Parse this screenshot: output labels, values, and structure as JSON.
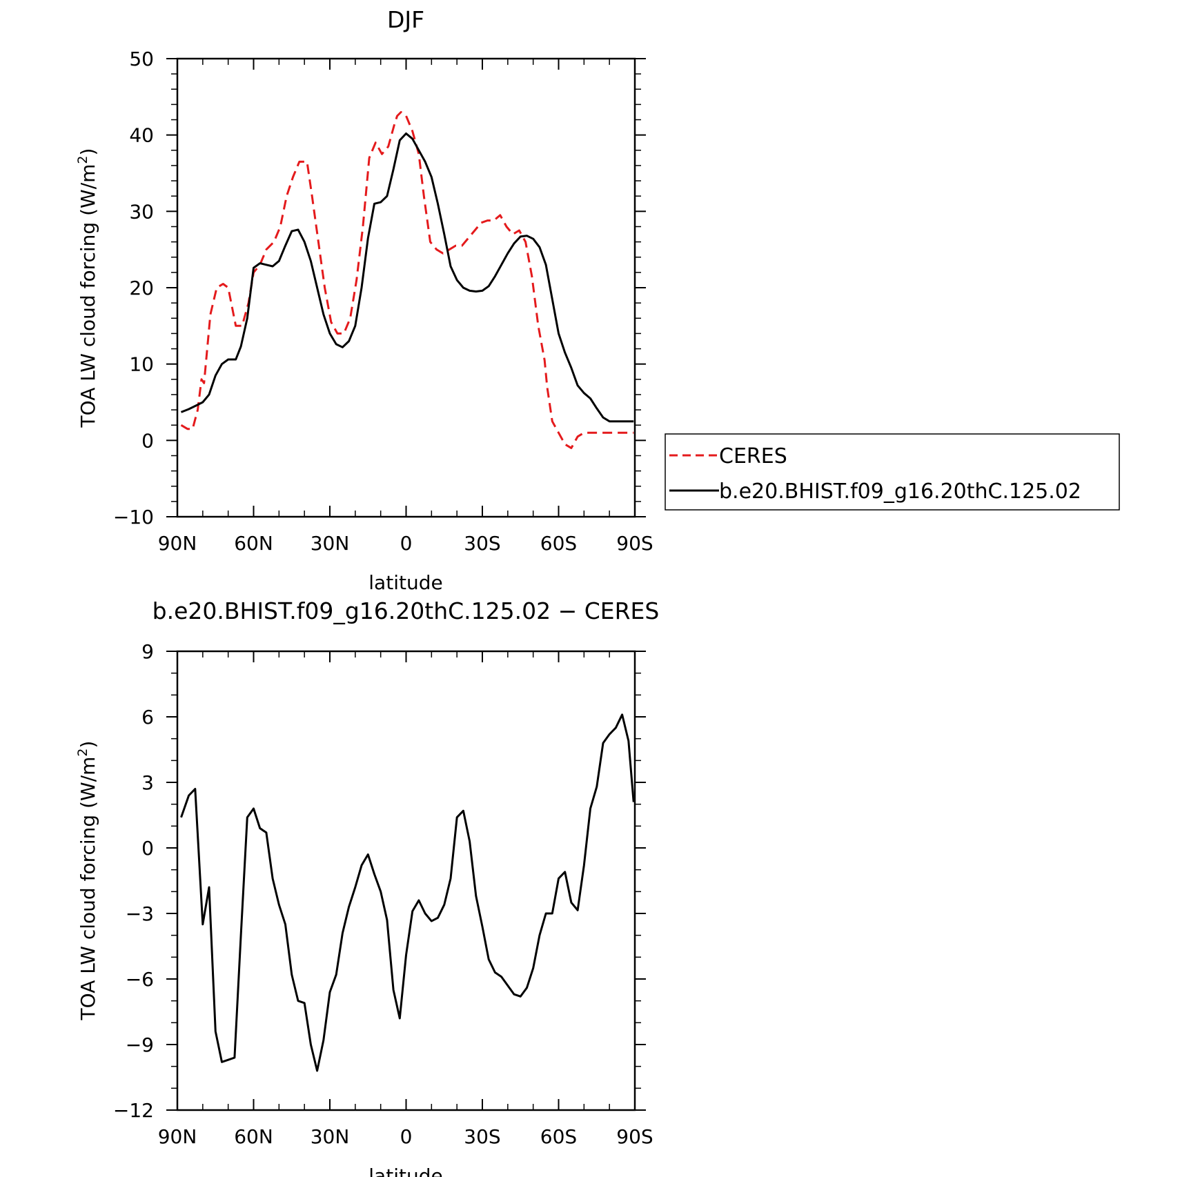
{
  "chart_data": [
    {
      "type": "line",
      "title": "DJF",
      "xlabel": "latitude",
      "ylabel": "TOA LW cloud forcing (W/m",
      "ylabel_sup": "2",
      "ylabel_close": ")",
      "xlim": [
        90,
        -90
      ],
      "ylim": [
        -10,
        50
      ],
      "xticks": [
        90,
        60,
        30,
        0,
        -30,
        -60,
        -90
      ],
      "xtick_labels": [
        "90N",
        "60N",
        "30N",
        "0",
        "30S",
        "60S",
        "90S"
      ],
      "yticks": [
        -10,
        0,
        10,
        20,
        30,
        40,
        50
      ],
      "ytick_labels": [
        "−10",
        "0",
        "10",
        "20",
        "30",
        "40",
        "50"
      ],
      "legend_placement": "right, outside plot",
      "series": [
        {
          "name": "CERES",
          "color": "#e41a1c",
          "dash": true,
          "x": [
            88.5,
            86.0,
            84.0,
            82.0,
            80.5,
            79.5,
            77.0,
            74.5,
            72.0,
            70.0,
            67.0,
            64.5,
            62.0,
            60.0,
            57.5,
            55.0,
            52.0,
            49.5,
            47.0,
            44.5,
            42.0,
            39.0,
            37.0,
            34.5,
            32.0,
            29.5,
            27.0,
            24.5,
            22.0,
            19.5,
            17.0,
            14.5,
            12.0,
            9.5,
            7.0,
            4.5,
            3.5,
            2.0,
            0.0,
            -2.5,
            -5.0,
            -7.0,
            -9.5,
            -12.0,
            -14.5,
            -17.0,
            -19.5,
            -22.0,
            -24.5,
            -27.0,
            -29.5,
            -32.0,
            -34.5,
            -37.0,
            -39.5,
            -42.0,
            -44.5,
            -47.0,
            -49.5,
            -52.0,
            -54.5,
            -55.5,
            -57.5,
            -60.0,
            -62.5,
            -65.0,
            -67.5,
            -70.0,
            -72.5,
            -75.0,
            -77.5,
            -80.0,
            -82.5,
            -85.0,
            -87.5,
            -89.5
          ],
          "y": [
            2.0,
            1.5,
            1.5,
            4.0,
            8.0,
            7.5,
            16.5,
            20.0,
            20.5,
            20.0,
            15.0,
            15.0,
            18.0,
            22.0,
            23.0,
            25.0,
            26.0,
            28.0,
            32.0,
            34.5,
            36.5,
            36.5,
            32.0,
            26.0,
            20.0,
            15.5,
            14.0,
            14.0,
            16.0,
            21.0,
            28.0,
            37.0,
            39.0,
            37.5,
            38.5,
            41.5,
            42.5,
            43.0,
            42.5,
            40.5,
            37.5,
            32.0,
            26.0,
            25.0,
            24.5,
            25.0,
            25.5,
            25.5,
            26.5,
            27.5,
            28.5,
            28.8,
            28.8,
            29.5,
            28.0,
            27.0,
            27.5,
            26.0,
            21.5,
            15.0,
            10.5,
            7.0,
            2.5,
            1.0,
            -0.5,
            -1.0,
            0.5,
            1.0,
            1.0,
            1.0,
            1.0,
            1.0,
            1.0,
            1.0,
            1.0,
            1.0
          ]
        },
        {
          "name": "b.e20.BHIST.f09_g16.20thC.125.02",
          "color": "#000000",
          "dash": false,
          "x": [
            88.5,
            85.5,
            83.0,
            80.0,
            77.5,
            75.0,
            72.5,
            70.0,
            67.0,
            65.0,
            62.5,
            60.0,
            57.5,
            55.0,
            52.5,
            50.0,
            47.5,
            45.0,
            42.5,
            40.0,
            37.5,
            35.0,
            32.5,
            30.0,
            27.5,
            25.0,
            22.5,
            20.0,
            17.5,
            15.0,
            12.5,
            10.0,
            7.5,
            5.0,
            2.5,
            0.0,
            -2.5,
            -5.0,
            -7.5,
            -10.0,
            -12.5,
            -15.0,
            -17.5,
            -20.0,
            -22.5,
            -25.0,
            -27.5,
            -30.0,
            -32.5,
            -35.0,
            -37.5,
            -40.0,
            -42.5,
            -45.0,
            -47.5,
            -50.0,
            -52.5,
            -55.0,
            -57.5,
            -60.0,
            -62.5,
            -65.0,
            -67.5,
            -70.0,
            -72.5,
            -75.0,
            -77.5,
            -80.0,
            -82.5,
            -85.0,
            -87.5,
            -89.5
          ],
          "y": [
            3.7,
            4.1,
            4.5,
            5.0,
            6.0,
            8.5,
            10.0,
            10.6,
            10.6,
            12.3,
            16.0,
            22.6,
            23.2,
            23.0,
            22.8,
            23.5,
            25.5,
            27.4,
            27.6,
            26.0,
            23.5,
            20.0,
            16.5,
            14.0,
            12.6,
            12.2,
            13.0,
            15.0,
            20.0,
            26.5,
            31.0,
            31.2,
            32.0,
            35.5,
            39.3,
            40.2,
            39.5,
            38.0,
            36.5,
            34.5,
            31.0,
            27.0,
            22.8,
            21.0,
            20.0,
            19.6,
            19.5,
            19.6,
            20.2,
            21.5,
            23.0,
            24.5,
            25.8,
            26.7,
            26.8,
            26.4,
            25.3,
            23.0,
            18.5,
            14.0,
            11.5,
            9.5,
            7.2,
            6.2,
            5.5,
            4.2,
            3.0,
            2.5,
            2.5,
            2.5,
            2.5,
            2.5
          ]
        }
      ]
    },
    {
      "type": "line",
      "title": "b.e20.BHIST.f09_g16.20thC.125.02 − CERES",
      "xlabel": "latitude",
      "ylabel": "TOA LW cloud forcing (W/m",
      "ylabel_sup": "2",
      "ylabel_close": ")",
      "xlim": [
        90,
        -90
      ],
      "ylim": [
        -12,
        9
      ],
      "xticks": [
        90,
        60,
        30,
        0,
        -30,
        -60,
        -90
      ],
      "xtick_labels": [
        "90N",
        "60N",
        "30N",
        "0",
        "30S",
        "60S",
        "90S"
      ],
      "yticks": [
        -12,
        -9,
        -6,
        -3,
        0,
        3,
        6,
        9
      ],
      "ytick_labels": [
        "−12",
        "−9",
        "−6",
        "−3",
        "0",
        "3",
        "6",
        "9"
      ],
      "series": [
        {
          "color": "#000000",
          "dash": false,
          "x": [
            88.5,
            85.5,
            83.0,
            80.0,
            77.5,
            75.0,
            72.5,
            70.0,
            67.5,
            65.0,
            62.5,
            60.0,
            57.5,
            55.0,
            52.5,
            50.0,
            47.5,
            45.0,
            42.5,
            40.0,
            37.5,
            35.0,
            32.5,
            30.0,
            27.5,
            25.0,
            22.5,
            20.0,
            17.5,
            15.0,
            12.5,
            10.0,
            7.5,
            5.0,
            2.5,
            0.0,
            -2.5,
            -5.0,
            -7.5,
            -10.0,
            -12.5,
            -15.0,
            -17.5,
            -20.0,
            -22.5,
            -25.0,
            -27.5,
            -30.0,
            -32.5,
            -35.0,
            -37.5,
            -40.0,
            -42.5,
            -45.0,
            -47.5,
            -50.0,
            -52.5,
            -55.0,
            -57.5,
            -60.0,
            -62.5,
            -65.0,
            -67.5,
            -70.0,
            -72.5,
            -75.0,
            -77.5,
            -80.0,
            -82.5,
            -85.0,
            -87.5,
            -89.5
          ],
          "y": [
            1.4,
            2.4,
            2.7,
            -3.5,
            -1.8,
            -8.4,
            -9.8,
            -9.7,
            -9.6,
            -4.0,
            1.4,
            1.8,
            0.9,
            0.7,
            -1.4,
            -2.6,
            -3.5,
            -5.8,
            -7.0,
            -7.1,
            -9.0,
            -10.2,
            -8.8,
            -6.6,
            -5.8,
            -3.9,
            -2.7,
            -1.8,
            -0.8,
            -0.3,
            -1.2,
            -2.0,
            -3.3,
            -6.5,
            -7.8,
            -4.9,
            -2.9,
            -2.4,
            -3.0,
            -3.35,
            -3.2,
            -2.6,
            -1.4,
            1.4,
            1.7,
            0.3,
            -2.2,
            -3.6,
            -5.1,
            -5.7,
            -5.9,
            -6.3,
            -6.7,
            -6.8,
            -6.4,
            -5.5,
            -4.0,
            -3.0,
            -3.0,
            -1.4,
            -1.1,
            -2.5,
            -2.85,
            -0.8,
            1.8,
            2.8,
            4.8,
            5.2,
            5.5,
            6.1,
            4.9,
            2.1
          ]
        }
      ]
    }
  ]
}
